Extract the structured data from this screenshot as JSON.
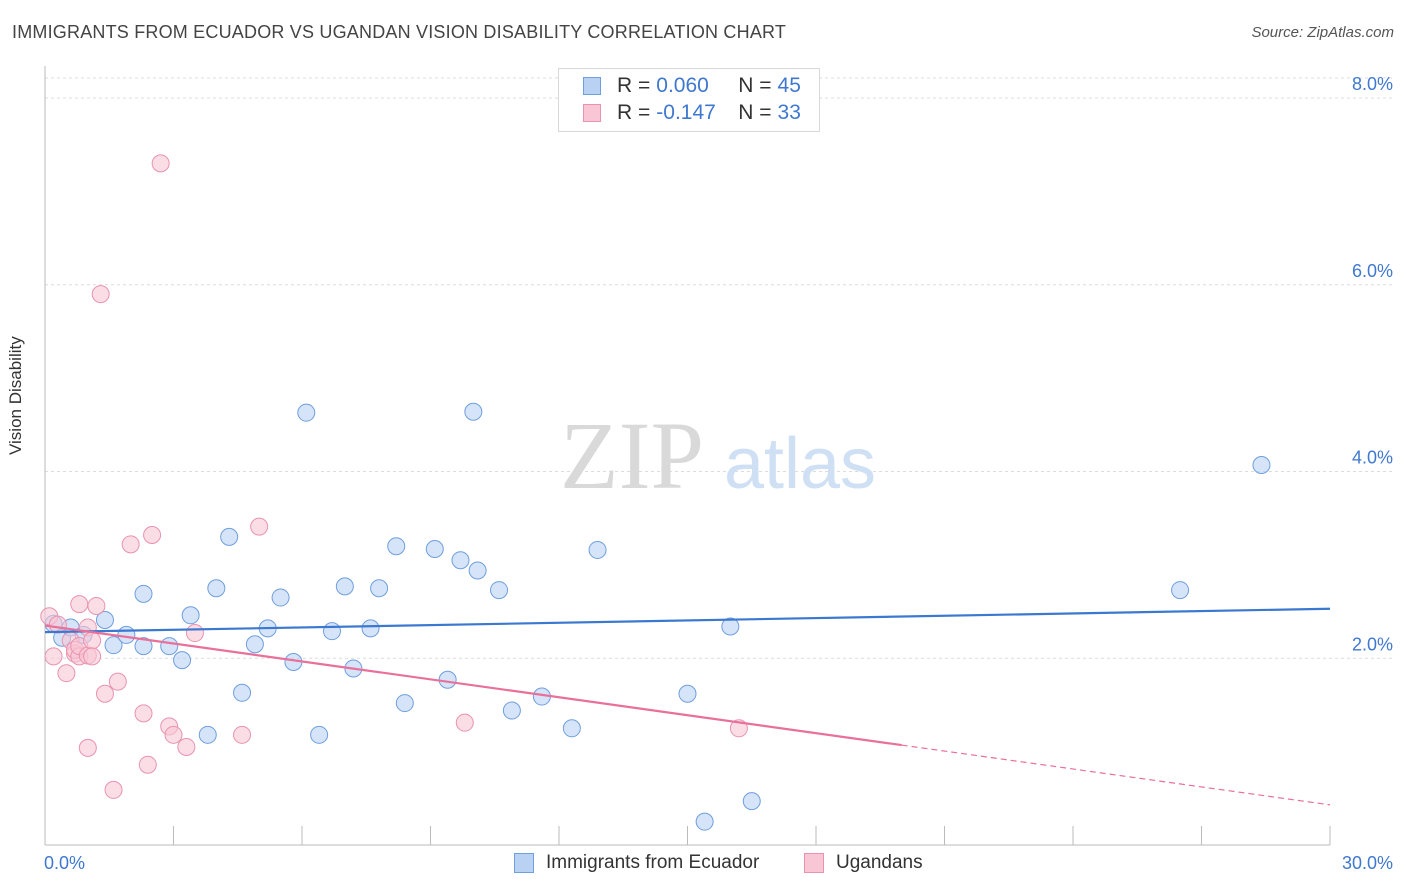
{
  "title": "IMMIGRANTS FROM ECUADOR VS UGANDAN VISION DISABILITY CORRELATION CHART",
  "source": "Source: ZipAtlas.com",
  "watermark": {
    "part1": "ZIP",
    "part2": "atlas"
  },
  "colors": {
    "blue": "#3b78d0",
    "blue_fill": "#b9d2f3",
    "pink": "#e8709a",
    "pink_fill": "#f9c6d6",
    "tick_label": "#3f78cf",
    "grid": "#dcdcdc"
  },
  "legend_top": [
    {
      "r_label": "R =",
      "r_value": "0.060",
      "n_label": "N =",
      "n_value": "45"
    },
    {
      "r_label": "R =",
      "r_value": "-0.147",
      "n_label": "N =",
      "n_value": "33"
    }
  ],
  "legend_bottom": [
    "Immigrants from Ecuador",
    "Ugandans"
  ],
  "chart_data": {
    "type": "scatter",
    "title": "IMMIGRANTS FROM ECUADOR VS UGANDAN VISION DISABILITY CORRELATION CHART",
    "xlabel": "",
    "ylabel": "Vision Disability",
    "xlim": [
      0,
      30
    ],
    "ylim": [
      0,
      8.3
    ],
    "x_tick_labels": [
      "0.0%",
      "30.0%"
    ],
    "y_ticks": [
      2,
      4,
      6,
      8
    ],
    "y_tick_labels": [
      "2.0%",
      "4.0%",
      "6.0%",
      "8.0%"
    ],
    "grid": true,
    "legend_position": "top-center",
    "series": [
      {
        "name": "Immigrants from Ecuador",
        "color": "#3b78d0",
        "trend": {
          "x": [
            0,
            30
          ],
          "y": [
            2.28,
            2.53
          ]
        },
        "points": [
          {
            "x": 0.2,
            "y": 2.37
          },
          {
            "x": 0.4,
            "y": 2.22
          },
          {
            "x": 0.6,
            "y": 2.33
          },
          {
            "x": 0.9,
            "y": 2.25
          },
          {
            "x": 1.4,
            "y": 2.41
          },
          {
            "x": 1.6,
            "y": 2.14
          },
          {
            "x": 1.9,
            "y": 2.25
          },
          {
            "x": 2.3,
            "y": 2.69
          },
          {
            "x": 2.3,
            "y": 2.13
          },
          {
            "x": 2.9,
            "y": 2.13
          },
          {
            "x": 3.2,
            "y": 1.98
          },
          {
            "x": 3.4,
            "y": 2.46
          },
          {
            "x": 3.8,
            "y": 1.18
          },
          {
            "x": 4.0,
            "y": 2.75
          },
          {
            "x": 4.3,
            "y": 3.3
          },
          {
            "x": 4.6,
            "y": 1.63
          },
          {
            "x": 4.9,
            "y": 2.15
          },
          {
            "x": 5.2,
            "y": 2.32
          },
          {
            "x": 5.5,
            "y": 2.65
          },
          {
            "x": 5.8,
            "y": 1.96
          },
          {
            "x": 6.1,
            "y": 4.63
          },
          {
            "x": 6.4,
            "y": 1.18
          },
          {
            "x": 6.7,
            "y": 2.29
          },
          {
            "x": 7.0,
            "y": 2.77
          },
          {
            "x": 7.2,
            "y": 1.89
          },
          {
            "x": 7.6,
            "y": 2.32
          },
          {
            "x": 7.8,
            "y": 2.75
          },
          {
            "x": 8.2,
            "y": 3.2
          },
          {
            "x": 8.4,
            "y": 1.52
          },
          {
            "x": 9.1,
            "y": 3.17
          },
          {
            "x": 9.4,
            "y": 1.77
          },
          {
            "x": 9.7,
            "y": 3.05
          },
          {
            "x": 10.0,
            "y": 4.64
          },
          {
            "x": 10.1,
            "y": 2.94
          },
          {
            "x": 10.6,
            "y": 2.73
          },
          {
            "x": 10.9,
            "y": 1.44
          },
          {
            "x": 11.6,
            "y": 1.59
          },
          {
            "x": 12.3,
            "y": 1.25
          },
          {
            "x": 12.9,
            "y": 3.16
          },
          {
            "x": 15.0,
            "y": 1.62
          },
          {
            "x": 15.4,
            "y": 0.25
          },
          {
            "x": 16.0,
            "y": 2.34
          },
          {
            "x": 16.5,
            "y": 0.47
          },
          {
            "x": 26.5,
            "y": 2.73
          },
          {
            "x": 28.4,
            "y": 4.07
          }
        ]
      },
      {
        "name": "Ugandans",
        "color": "#e8709a",
        "trend": {
          "x": [
            0,
            20
          ],
          "y": [
            2.35,
            1.07
          ]
        },
        "trend_dashed": {
          "x": [
            20,
            30
          ],
          "y": [
            1.07,
            0.43
          ]
        },
        "points": [
          {
            "x": 0.1,
            "y": 2.45
          },
          {
            "x": 0.2,
            "y": 2.02
          },
          {
            "x": 0.3,
            "y": 2.36
          },
          {
            "x": 0.5,
            "y": 1.84
          },
          {
            "x": 0.6,
            "y": 2.19
          },
          {
            "x": 0.7,
            "y": 2.05
          },
          {
            "x": 0.7,
            "y": 2.09
          },
          {
            "x": 0.8,
            "y": 2.02
          },
          {
            "x": 0.8,
            "y": 2.13
          },
          {
            "x": 0.8,
            "y": 2.58
          },
          {
            "x": 1.0,
            "y": 2.03
          },
          {
            "x": 1.0,
            "y": 2.33
          },
          {
            "x": 1.1,
            "y": 2.19
          },
          {
            "x": 1.0,
            "y": 1.04
          },
          {
            "x": 1.1,
            "y": 2.02
          },
          {
            "x": 1.2,
            "y": 2.56
          },
          {
            "x": 1.3,
            "y": 5.9
          },
          {
            "x": 1.4,
            "y": 1.62
          },
          {
            "x": 1.6,
            "y": 0.59
          },
          {
            "x": 1.7,
            "y": 1.75
          },
          {
            "x": 2.0,
            "y": 3.22
          },
          {
            "x": 2.3,
            "y": 1.41
          },
          {
            "x": 2.4,
            "y": 0.86
          },
          {
            "x": 2.5,
            "y": 3.32
          },
          {
            "x": 2.7,
            "y": 7.3
          },
          {
            "x": 2.9,
            "y": 1.27
          },
          {
            "x": 3.0,
            "y": 1.18
          },
          {
            "x": 3.3,
            "y": 1.05
          },
          {
            "x": 3.5,
            "y": 2.27
          },
          {
            "x": 4.6,
            "y": 1.18
          },
          {
            "x": 5.0,
            "y": 3.41
          },
          {
            "x": 9.8,
            "y": 1.31
          },
          {
            "x": 16.2,
            "y": 1.25
          }
        ]
      }
    ]
  }
}
